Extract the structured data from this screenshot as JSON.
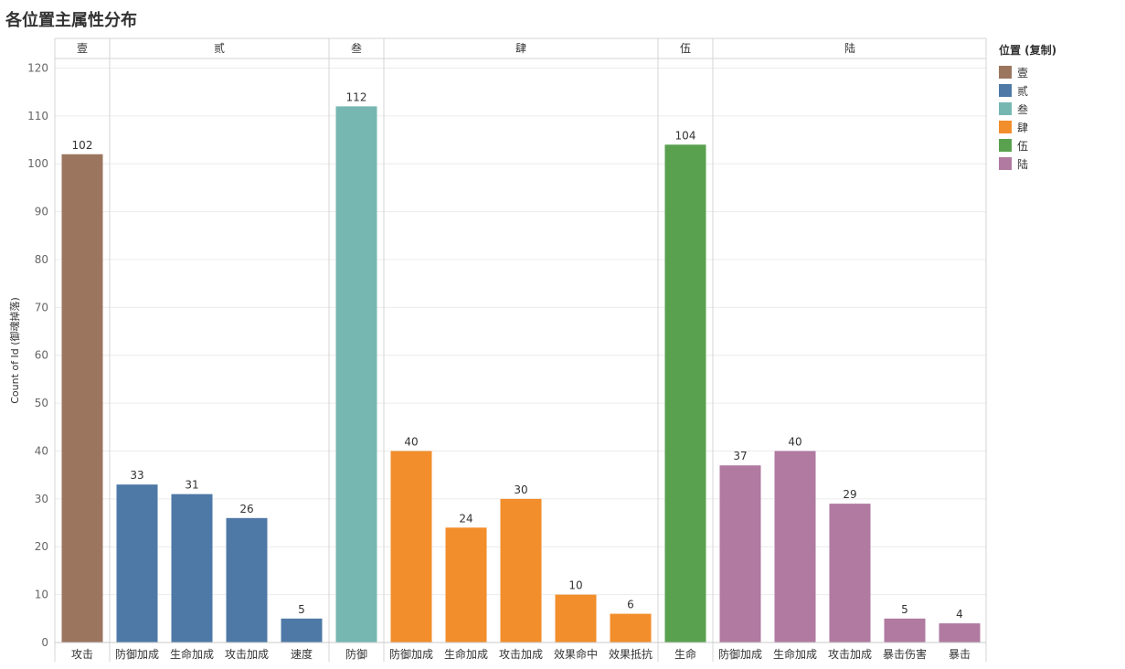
{
  "title": "各位置主属性分布",
  "chart_data": {
    "type": "bar",
    "ylabel": "Count of Id (御魂掉落)",
    "ylim": [
      0,
      122
    ],
    "yticks": [
      0,
      10,
      20,
      30,
      40,
      50,
      60,
      70,
      80,
      90,
      100,
      110,
      120
    ],
    "grid": true,
    "legend": {
      "title": "位置 (复制)",
      "placement": "right",
      "items": [
        {
          "name": "壹",
          "color": "#9C755F"
        },
        {
          "name": "贰",
          "color": "#4E79A7"
        },
        {
          "name": "叁",
          "color": "#76B7B2"
        },
        {
          "name": "肆",
          "color": "#F28E2B"
        },
        {
          "name": "伍",
          "color": "#59A14F"
        },
        {
          "name": "陆",
          "color": "#B07AA1"
        }
      ]
    },
    "panels": [
      {
        "name": "壹",
        "color": "#9C755F",
        "categories": [
          "攻击"
        ],
        "values": [
          102
        ]
      },
      {
        "name": "贰",
        "color": "#4E79A7",
        "categories": [
          "防御加成",
          "生命加成",
          "攻击加成",
          "速度"
        ],
        "values": [
          33,
          31,
          26,
          5
        ]
      },
      {
        "name": "叁",
        "color": "#76B7B2",
        "categories": [
          "防御"
        ],
        "values": [
          112
        ]
      },
      {
        "name": "肆",
        "color": "#F28E2B",
        "categories": [
          "防御加成",
          "生命加成",
          "攻击加成",
          "效果命中",
          "效果抵抗"
        ],
        "values": [
          40,
          24,
          30,
          10,
          6
        ]
      },
      {
        "name": "伍",
        "color": "#59A14F",
        "categories": [
          "生命"
        ],
        "values": [
          104
        ]
      },
      {
        "name": "陆",
        "color": "#B07AA1",
        "categories": [
          "防御加成",
          "生命加成",
          "攻击加成",
          "暴击伤害",
          "暴击"
        ],
        "values": [
          37,
          40,
          29,
          5,
          4
        ]
      }
    ]
  }
}
